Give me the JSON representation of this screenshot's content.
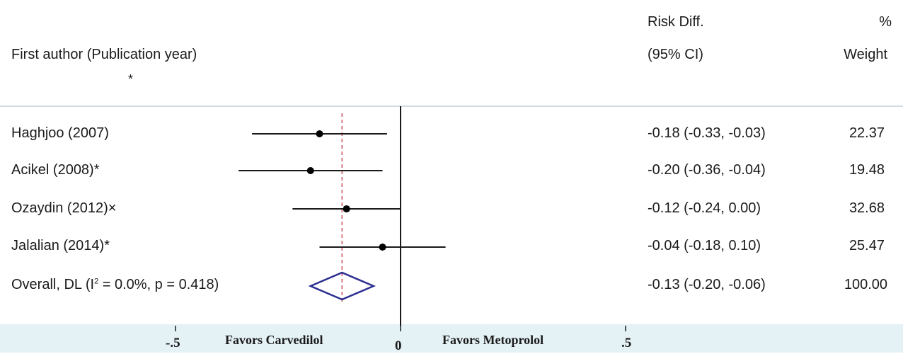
{
  "header": {
    "col1_label": "First author (Publication year)",
    "col1_marker": "*",
    "effect_label_line1": "Risk Diff.",
    "effect_label_line2": "(95% CI)",
    "weight_label_line1": "%",
    "weight_label_line2": "Weight"
  },
  "chart_data": {
    "type": "forest",
    "x_ticks": [
      {
        "value": -0.5,
        "label": "-.5"
      },
      {
        "value": 0,
        "label": "0"
      },
      {
        "value": 0.5,
        "label": ".5"
      }
    ],
    "null_line": 0,
    "overall_reference_line": -0.13,
    "left_favors_label": "Favors Carvedilol",
    "right_favors_label": "Favors Metoprolol",
    "studies": [
      {
        "label": "Haghjoo (2007)",
        "estimate": -0.18,
        "lower": -0.33,
        "upper": -0.03,
        "ci_text": "-0.18 (-0.33, -0.03)",
        "weight": "22.37"
      },
      {
        "label": "Acikel (2008)*",
        "estimate": -0.2,
        "lower": -0.36,
        "upper": -0.04,
        "ci_text": "-0.20 (-0.36, -0.04)",
        "weight": "19.48"
      },
      {
        "label": "Ozaydin (2012)×",
        "estimate": -0.12,
        "lower": -0.24,
        "upper": 0.0,
        "ci_text": "-0.12 (-0.24, 0.00)",
        "weight": "32.68"
      },
      {
        "label": "Jalalian (2014)*",
        "estimate": -0.04,
        "lower": -0.18,
        "upper": 0.1,
        "ci_text": "-0.04 (-0.18, 0.10)",
        "weight": "25.47"
      }
    ],
    "overall": {
      "label_prefix": "Overall, DL (I",
      "label_sup": "2",
      "label_suffix": " = 0.0%, p = 0.418)",
      "estimate": -0.13,
      "lower": -0.2,
      "upper": -0.06,
      "ci_text": "-0.13 (-0.20, -0.06)",
      "weight": "100.00"
    },
    "colors": {
      "ci_line": "#1a1a1a",
      "point": "#000000",
      "diamond": "#2b2f8f",
      "reference_dash": "#c8505a",
      "null_line": "#1a1a1a",
      "separator": "#cfdde2",
      "footer_band": "#e4f1f5"
    }
  }
}
